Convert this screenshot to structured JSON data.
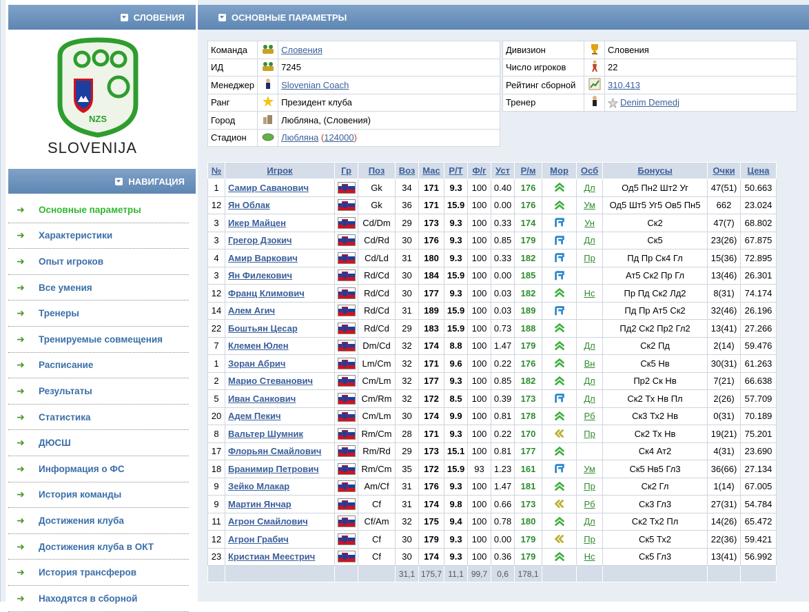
{
  "left": {
    "team_header": "СЛОВЕНИЯ",
    "logo_text_nzs": "NZS",
    "logo_text_country": "SLOVENIJA",
    "nav_header": "НАВИГАЦИЯ",
    "nav_items": [
      {
        "label": "Основные параметры",
        "active": true
      },
      {
        "label": "Характеристики"
      },
      {
        "label": "Опыт игроков"
      },
      {
        "label": "Все умения"
      },
      {
        "label": "Тренеры"
      },
      {
        "label": "Тренируемые совмещения"
      },
      {
        "label": "Расписание"
      },
      {
        "label": "Результаты"
      },
      {
        "label": "Статистика"
      },
      {
        "label": "ДЮСШ"
      },
      {
        "label": "Информация о ФС"
      },
      {
        "label": "История команды"
      },
      {
        "label": "Достижения клуба"
      },
      {
        "label": "Достижения клуба в ОКТ"
      },
      {
        "label": "История трансферов"
      },
      {
        "label": "Находятся в сборной"
      }
    ]
  },
  "main": {
    "header": "ОСНОВНЫЕ ПАРАМЕТРЫ",
    "info_left": [
      {
        "label": "Команда",
        "icon": "team-icon",
        "value": "Словения",
        "link": true
      },
      {
        "label": "ИД",
        "icon": "team-icon",
        "value": "7245",
        "link": false
      },
      {
        "label": "Менеджер",
        "icon": "manager-icon",
        "value": "Slovenian Coach",
        "link": true
      },
      {
        "label": "Ранг",
        "icon": "star-icon",
        "value": "Президент клуба",
        "link": false
      },
      {
        "label": "Город",
        "icon": "city-icon",
        "value": "Любляна, (Словения)",
        "link": false
      }
    ],
    "stadium": {
      "label": "Стадион",
      "name": "Любляна",
      "capacity": "124000",
      "open": "(",
      "close": ")"
    },
    "info_right": [
      {
        "label": "Дивизион",
        "icon": "trophy-icon",
        "value": "Словения",
        "link": false
      },
      {
        "label": "Число игроков",
        "icon": "player-icon",
        "value": "22",
        "link": false
      },
      {
        "label": "Рейтинг сборной",
        "icon": "chart-icon",
        "value": "310.413",
        "link": true
      },
      {
        "label": "Тренер",
        "icon": "coach-icon",
        "value": "Denim Demedj",
        "link": true
      }
    ],
    "columns": [
      "№",
      "Игрок",
      "Гр",
      "Поз",
      "Воз",
      "Мас",
      "Р/Т",
      "Ф/г",
      "Уст",
      "Р/м",
      "Мор",
      "Осб",
      "Бонусы",
      "Очки",
      "Цена"
    ],
    "players": [
      {
        "num": "1",
        "name": "Самир Саванович",
        "pos": "Gk",
        "age": "34",
        "mas": "171",
        "rt": "9.3",
        "fg": "100",
        "ust": "0.40",
        "rm": "176",
        "mor": "up",
        "osb": "Дл",
        "bonus": "Од5 Пн2 Шт2 Уг",
        "pts": "47(51)",
        "price": "50.663"
      },
      {
        "num": "12",
        "name": "Ян Облак",
        "pos": "Gk",
        "age": "36",
        "mas": "171",
        "rt": "15.9",
        "fg": "100",
        "ust": "0.00",
        "rm": "176",
        "mor": "up",
        "osb": "Ум",
        "bonus": "Од5 Шт5 Уг5 Ов5 Пн5",
        "pts": "662",
        "price": "23.024"
      },
      {
        "num": "3",
        "name": "Икер Майцен",
        "pos": "Cd/Dm",
        "age": "29",
        "mas": "173",
        "rt": "9.3",
        "fg": "100",
        "ust": "0.33",
        "rm": "174",
        "mor": "right",
        "osb": "Ун",
        "bonus": "Ск2",
        "pts": "47(7)",
        "price": "68.802"
      },
      {
        "num": "3",
        "name": "Грегор Дзокич",
        "pos": "Cd/Rd",
        "age": "30",
        "mas": "176",
        "rt": "9.3",
        "fg": "100",
        "ust": "0.85",
        "rm": "179",
        "mor": "right",
        "osb": "Дл",
        "bonus": "Ск5",
        "pts": "23(26)",
        "price": "67.875"
      },
      {
        "num": "4",
        "name": "Амир Варкович",
        "pos": "Cd/Ld",
        "age": "31",
        "mas": "180",
        "rt": "9.3",
        "fg": "100",
        "ust": "0.33",
        "rm": "182",
        "mor": "right",
        "osb": "Пр",
        "bonus": "Пд Пр Ск4 Гл",
        "pts": "15(36)",
        "price": "72.895"
      },
      {
        "num": "3",
        "name": "Ян Филекович",
        "pos": "Rd/Cd",
        "age": "30",
        "mas": "184",
        "rt": "15.9",
        "fg": "100",
        "ust": "0.00",
        "rm": "185",
        "mor": "right",
        "osb": "",
        "bonus": "Ат5 Ск2 Пр Гл",
        "pts": "13(46)",
        "price": "26.301"
      },
      {
        "num": "12",
        "name": "Франц Климович",
        "pos": "Rd/Cd",
        "age": "30",
        "mas": "177",
        "rt": "9.3",
        "fg": "100",
        "ust": "0.03",
        "rm": "182",
        "mor": "up",
        "osb": "Нс",
        "bonus": "Пр Пд Ск2 Лд2",
        "pts": "8(31)",
        "price": "74.174"
      },
      {
        "num": "14",
        "name": "Алем Агич",
        "pos": "Rd/Cd",
        "age": "31",
        "mas": "189",
        "rt": "15.9",
        "fg": "100",
        "ust": "0.03",
        "rm": "189",
        "mor": "right",
        "osb": "",
        "bonus": "Пд Пр Ат5 Ск2",
        "pts": "32(46)",
        "price": "26.196"
      },
      {
        "num": "22",
        "name": "Боштьян Цесар",
        "pos": "Rd/Cd",
        "age": "29",
        "mas": "183",
        "rt": "15.9",
        "fg": "100",
        "ust": "0.73",
        "rm": "188",
        "mor": "up",
        "osb": "",
        "bonus": "Пд2 Ск2 Пр2 Гл2",
        "pts": "13(41)",
        "price": "27.266"
      },
      {
        "num": "7",
        "name": "Клемен Юлен",
        "pos": "Dm/Cd",
        "age": "32",
        "mas": "174",
        "rt": "8.8",
        "fg": "100",
        "ust": "1.47",
        "rm": "179",
        "mor": "up",
        "osb": "Дл",
        "bonus": "Ск2 Пд",
        "pts": "2(14)",
        "price": "59.476"
      },
      {
        "num": "1",
        "name": "Зоран Абрич",
        "pos": "Lm/Cm",
        "age": "32",
        "mas": "171",
        "rt": "9.6",
        "fg": "100",
        "ust": "0.22",
        "rm": "176",
        "mor": "up",
        "osb": "Вн",
        "bonus": "Ск5 Нв",
        "pts": "30(31)",
        "price": "61.263"
      },
      {
        "num": "2",
        "name": "Марио Стеванович",
        "pos": "Cm/Lm",
        "age": "32",
        "mas": "177",
        "rt": "9.3",
        "fg": "100",
        "ust": "0.85",
        "rm": "182",
        "mor": "up",
        "osb": "Дл",
        "bonus": "Пр2 Ск Нв",
        "pts": "7(21)",
        "price": "66.638"
      },
      {
        "num": "5",
        "name": "Иван Санкович",
        "pos": "Cm/Rm",
        "age": "32",
        "mas": "172",
        "rt": "8.5",
        "fg": "100",
        "ust": "0.39",
        "rm": "173",
        "mor": "right",
        "osb": "Дл",
        "bonus": "Ск2 Тх Нв Пл",
        "pts": "2(26)",
        "price": "57.709"
      },
      {
        "num": "20",
        "name": "Адем Пекич",
        "pos": "Cm/Lm",
        "age": "30",
        "mas": "174",
        "rt": "9.9",
        "fg": "100",
        "ust": "0.81",
        "rm": "178",
        "mor": "up",
        "osb": "Рб",
        "bonus": "Ск3 Тх2 Нв",
        "pts": "0(31)",
        "price": "70.189"
      },
      {
        "num": "8",
        "name": "Вальтер Шумник",
        "pos": "Rm/Cm",
        "age": "28",
        "mas": "171",
        "rt": "9.3",
        "fg": "100",
        "ust": "0.22",
        "rm": "170",
        "mor": "left",
        "osb": "Пр",
        "bonus": "Ск2 Тх Нв",
        "pts": "19(21)",
        "price": "75.201"
      },
      {
        "num": "17",
        "name": "Флорьян Смайлович",
        "pos": "Rm/Rd",
        "age": "29",
        "mas": "173",
        "rt": "15.1",
        "fg": "100",
        "ust": "0.81",
        "rm": "177",
        "mor": "up",
        "osb": "",
        "bonus": "Ск4 Ат2",
        "pts": "4(31)",
        "price": "23.690"
      },
      {
        "num": "18",
        "name": "Бранимир Петрович",
        "pos": "Rm/Cm",
        "age": "35",
        "mas": "172",
        "rt": "15.9",
        "fg": "93",
        "ust": "1.23",
        "rm": "161",
        "mor": "right",
        "osb": "Ум",
        "bonus": "Ск5 Нв5 Гл3",
        "pts": "36(66)",
        "price": "27.134"
      },
      {
        "num": "9",
        "name": "Зейко Млакар",
        "pos": "Am/Cf",
        "age": "31",
        "mas": "176",
        "rt": "9.3",
        "fg": "100",
        "ust": "1.47",
        "rm": "181",
        "mor": "up",
        "osb": "Пр",
        "bonus": "Ск2 Гл",
        "pts": "1(14)",
        "price": "67.005"
      },
      {
        "num": "9",
        "name": "Мартин Янчар",
        "pos": "Cf",
        "age": "31",
        "mas": "174",
        "rt": "9.8",
        "fg": "100",
        "ust": "0.66",
        "rm": "173",
        "mor": "left",
        "osb": "Рб",
        "bonus": "Ск3 Гл3",
        "pts": "27(31)",
        "price": "54.784"
      },
      {
        "num": "11",
        "name": "Агрон Смайлович",
        "pos": "Cf/Am",
        "age": "32",
        "mas": "175",
        "rt": "9.4",
        "fg": "100",
        "ust": "0.78",
        "rm": "180",
        "mor": "up",
        "osb": "Дл",
        "bonus": "Ск2 Тх2 Пл",
        "pts": "14(26)",
        "price": "65.472"
      },
      {
        "num": "12",
        "name": "Агрон Грабич",
        "pos": "Cf",
        "age": "30",
        "mas": "179",
        "rt": "9.3",
        "fg": "100",
        "ust": "0.00",
        "rm": "179",
        "mor": "left",
        "osb": "Пр",
        "bonus": "Ск5 Тх2",
        "pts": "22(36)",
        "price": "59.421"
      },
      {
        "num": "23",
        "name": "Кристиан Меестрич",
        "pos": "Cf",
        "age": "30",
        "mas": "174",
        "rt": "9.3",
        "fg": "100",
        "ust": "0.36",
        "rm": "179",
        "mor": "up",
        "osb": "Нс",
        "bonus": "Ск5 Гл3",
        "pts": "13(41)",
        "price": "56.992"
      }
    ],
    "totals": {
      "age": "31,1",
      "mas": "175,7",
      "rt": "11,1",
      "fg": "99,7",
      "ust": "0,6",
      "rm": "178,1"
    }
  },
  "colors": {
    "header_blue": "#5e86b3",
    "link_blue": "#3a5f9c",
    "nav_green": "#2fb82f",
    "value_green": "#2e8b2e"
  }
}
